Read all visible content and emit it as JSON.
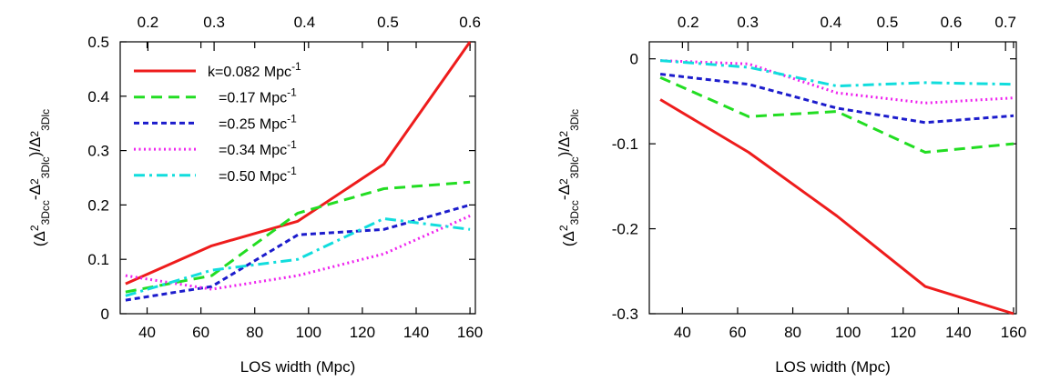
{
  "chart_data": [
    {
      "type": "line",
      "xlabel": "LOS width (Mpc)",
      "ylabel": "(Δ²3Dcc-Δ²3Dlc)/Δ²3Dlc",
      "xlim": [
        30,
        162
      ],
      "ylim": [
        0,
        0.5
      ],
      "xticks": [
        40,
        60,
        80,
        100,
        120,
        140,
        160
      ],
      "yticks": [
        0,
        0.1,
        0.2,
        0.3,
        0.4,
        0.5
      ],
      "yticklabels": [
        "0",
        "0.1",
        "0.2",
        "0.3",
        "0.4",
        "0.5"
      ],
      "top_axis_ticks": [
        0.2,
        0.3,
        0.4,
        0.5,
        0.6
      ],
      "top_axis_tick_pos": [
        40.3,
        64.9,
        98.5,
        129.5,
        160
      ],
      "legend_position": "top-left",
      "series": [
        {
          "name": "k=0.082 Mpc-1",
          "color": "#ee1c1c",
          "dash": "solid",
          "x": [
            32,
            64,
            96,
            128,
            160
          ],
          "y": [
            0.055,
            0.125,
            0.17,
            0.275,
            0.5
          ]
        },
        {
          "name": "=0.17 Mpc-1",
          "color": "#22dd22",
          "dash": "dashed",
          "x": [
            32,
            64,
            96,
            128,
            160
          ],
          "y": [
            0.04,
            0.07,
            0.185,
            0.23,
            0.242
          ]
        },
        {
          "name": "=0.25 Mpc-1",
          "color": "#1c1ccc",
          "dash": "shortdash",
          "x": [
            32,
            64,
            96,
            128,
            160
          ],
          "y": [
            0.025,
            0.05,
            0.145,
            0.155,
            0.2
          ]
        },
        {
          "name": "=0.34 Mpc-1",
          "color": "#ee22ee",
          "dash": "dotted",
          "x": [
            32,
            64,
            96,
            128,
            160
          ],
          "y": [
            0.07,
            0.045,
            0.07,
            0.11,
            0.18
          ]
        },
        {
          "name": "=0.50 Mpc-1",
          "color": "#11dddd",
          "dash": "dashdot",
          "x": [
            32,
            64,
            96,
            128,
            160
          ],
          "y": [
            0.033,
            0.08,
            0.1,
            0.175,
            0.155
          ]
        }
      ]
    },
    {
      "type": "line",
      "xlabel": "LOS width (Mpc)",
      "ylabel": "(Δ²3Dcc-Δ²3Dlc)/Δ²3Dlc",
      "xlim": [
        28,
        161
      ],
      "ylim": [
        -0.3,
        0.02
      ],
      "xticks": [
        40,
        60,
        80,
        100,
        120,
        140,
        160
      ],
      "yticks": [
        0,
        -0.1,
        -0.2,
        -0.3
      ],
      "yticklabels": [
        "0",
        "-0.1",
        "-0.2",
        "-0.3"
      ],
      "top_axis_ticks": [
        0.2,
        0.3,
        0.4,
        0.5,
        0.6,
        0.7
      ],
      "top_axis_tick_pos": [
        42.1,
        63.7,
        93.8,
        114.3,
        137.4,
        157.1
      ],
      "series": [
        {
          "name": "k=0.082 Mpc-1",
          "color": "#ee1c1c",
          "dash": "solid",
          "x": [
            32,
            64,
            96,
            128,
            160
          ],
          "y": [
            -0.048,
            -0.11,
            -0.185,
            -0.268,
            -0.3
          ]
        },
        {
          "name": "=0.17 Mpc-1",
          "color": "#22dd22",
          "dash": "dashed",
          "x": [
            32,
            64,
            96,
            128,
            160
          ],
          "y": [
            -0.022,
            -0.068,
            -0.062,
            -0.11,
            -0.1
          ]
        },
        {
          "name": "=0.25 Mpc-1",
          "color": "#1c1ccc",
          "dash": "shortdash",
          "x": [
            32,
            64,
            96,
            128,
            160
          ],
          "y": [
            -0.018,
            -0.03,
            -0.058,
            -0.075,
            -0.067
          ]
        },
        {
          "name": "=0.34 Mpc-1",
          "color": "#ee22ee",
          "dash": "dotted",
          "x": [
            32,
            64,
            96,
            128,
            160
          ],
          "y": [
            -0.002,
            -0.006,
            -0.04,
            -0.052,
            -0.046
          ]
        },
        {
          "name": "=0.50 Mpc-1",
          "color": "#11dddd",
          "dash": "dashdot",
          "x": [
            32,
            64,
            96,
            128,
            160
          ],
          "y": [
            -0.002,
            -0.01,
            -0.032,
            -0.028,
            -0.03
          ]
        }
      ]
    }
  ]
}
